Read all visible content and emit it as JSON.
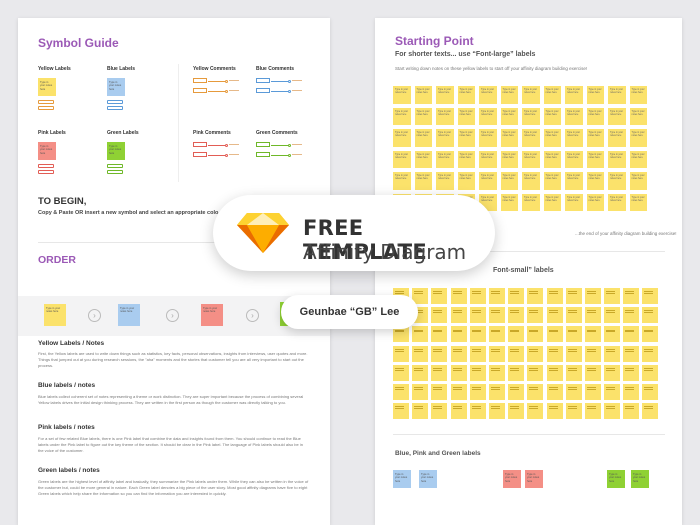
{
  "left": {
    "title": "Symbol Guide",
    "labels": {
      "yellow": "Yellow Labels",
      "blue": "Blue Labels",
      "pink": "Pink Labels",
      "green": "Green Labels"
    },
    "comments": {
      "yellow": "Yellow Comments",
      "blue": "Blue Comments",
      "pink": "Pink Comments",
      "green": "Green Comments"
    },
    "note_text": "Type in your notes here",
    "to_begin_title": "TO BEGIN,",
    "to_begin_text": "Copy & Paste OR insert a new symbol and select an appropriate colo",
    "order_title": "ORDER",
    "sections": [
      {
        "title": "Yellow Labels / Notes",
        "body": "First, the Yellow labels are used to write down things such as statistics, key facts, personal observations, insights from interviews, user quotes and more. Things that jumped out at you during research sessions, the \"aha\" moments and the stories that customer tell you are all very important to start out the process."
      },
      {
        "title": "Blue labels / notes",
        "body": "Blue labels collect coherent set of notes representing a theme or work distinction. They are super important because the process of combining several Yellow labels drives the initial design thinking process. They are written in the first person as though the customer was directly talking to you."
      },
      {
        "title": "Pink labels / notes",
        "body": "For a set of few related Blue labels, there is one Pink label that combine the data and insights found from them. You should continue to read the Blue labels under the Pink label to figure out the key theme of the section. It should be clear in the Pink label. The language of Pink labels should also be in the voice of the customer."
      },
      {
        "title": "Green labels / notes",
        "body": "Green labels are the highest level of affinity label and basically, they summarize the Pink labels under them. While they can also be written in the voice of the customer but, could be more general in nature. Each Green label denotes a big piece of the user story. Most good affinity diagrams have five to eight Green labels which help share the information so you can find the information you are interested in quickly."
      }
    ]
  },
  "right": {
    "title": "Starting Point",
    "subtitle": "For shorter texts... use “Font-large” labels",
    "intro": "Start writing down notes on these yellow labels to start off your affinity diagram building exercise!",
    "end_note": "...the end of your affinity diagram building exercise!",
    "small_label_fragment": "Font-small” labels",
    "bpg_title": "Blue, Pink and Green labels",
    "cell_text": "Type in your notes here"
  },
  "badge": {
    "title": "FREE TEMPLATE",
    "subtitle": "Affinity Diagram"
  },
  "author": "Geunbae “GB” Lee",
  "colors": {
    "purple": "#9b59b6",
    "yellow": "#fbe26b",
    "blue": "#a9ccef",
    "pink": "#f48f86",
    "green": "#8fd134",
    "sketch_orange": "#f7a21a"
  }
}
